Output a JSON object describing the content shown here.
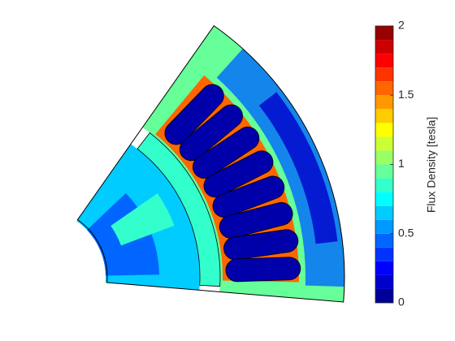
{
  "chart_data": {
    "type": "contour",
    "colorbar": {
      "label": "Flux Density [tesla]",
      "lim": [
        0,
        2
      ],
      "ticks": [
        0,
        0.5,
        1,
        1.5,
        2
      ],
      "levels": [
        0,
        0.1,
        0.2,
        0.3,
        0.4,
        0.5,
        0.6,
        0.7,
        0.8,
        0.9,
        1,
        1.1,
        1.2,
        1.3,
        1.4,
        1.5,
        1.6,
        1.7,
        1.8,
        1.9,
        2
      ],
      "colors": [
        "#000099",
        "#0000cc",
        "#0000ff",
        "#0033ff",
        "#0066ff",
        "#0099ff",
        "#00ccff",
        "#00ffff",
        "#33ffcc",
        "#66ff99",
        "#99ff66",
        "#ccff33",
        "#ffff00",
        "#ffcc00",
        "#ff9900",
        "#ff6600",
        "#ff3300",
        "#ff0000",
        "#cc0000",
        "#990000"
      ]
    }
  }
}
